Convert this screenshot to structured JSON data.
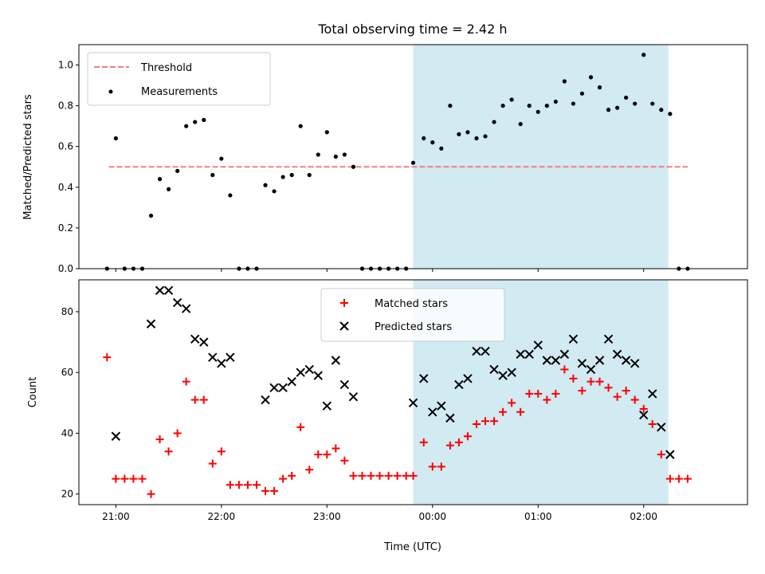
{
  "title": "Total observing time = 2.42 h",
  "xlabel": "Time (UTC)",
  "colors": {
    "shade": "#add8e6",
    "threshold": "#f08080",
    "measurement": "#000000",
    "matched": "#ff0000",
    "predicted": "#000000"
  },
  "chart_data": [
    {
      "type": "scatter",
      "ylabel": "Matched/Predicted stars",
      "ylim": [
        0,
        1.1
      ],
      "yticks": [
        "0.0",
        "0.2",
        "0.4",
        "0.6",
        "0.8",
        "1.0"
      ],
      "x_range": [
        "20:39",
        "02:59"
      ],
      "x_ticks": [
        "21:00",
        "22:00",
        "23:00",
        "00:00",
        "01:00",
        "02:00"
      ],
      "shaded_span": [
        "23:49",
        "02:14"
      ],
      "legend": {
        "position": "upper left",
        "threshold": "Threshold",
        "measurements": "Measurements"
      },
      "threshold": {
        "y": 0.5,
        "x_start": "20:56",
        "x_end": "02:25"
      },
      "series": [
        {
          "name": "Measurements",
          "points": [
            [
              "20:55",
              0.0
            ],
            [
              "21:00",
              0.64
            ],
            [
              "21:05",
              0.0
            ],
            [
              "21:10",
              0.0
            ],
            [
              "21:15",
              0.0
            ],
            [
              "21:20",
              0.26
            ],
            [
              "21:25",
              0.44
            ],
            [
              "21:30",
              0.39
            ],
            [
              "21:35",
              0.48
            ],
            [
              "21:40",
              0.7
            ],
            [
              "21:45",
              0.72
            ],
            [
              "21:50",
              0.73
            ],
            [
              "21:55",
              0.46
            ],
            [
              "22:00",
              0.54
            ],
            [
              "22:05",
              0.36
            ],
            [
              "22:10",
              0.0
            ],
            [
              "22:15",
              0.0
            ],
            [
              "22:20",
              0.0
            ],
            [
              "22:25",
              0.41
            ],
            [
              "22:30",
              0.38
            ],
            [
              "22:35",
              0.45
            ],
            [
              "22:40",
              0.46
            ],
            [
              "22:45",
              0.7
            ],
            [
              "22:50",
              0.46
            ],
            [
              "22:55",
              0.56
            ],
            [
              "23:00",
              0.67
            ],
            [
              "23:05",
              0.55
            ],
            [
              "23:10",
              0.56
            ],
            [
              "23:15",
              0.5
            ],
            [
              "23:20",
              0.0
            ],
            [
              "23:25",
              0.0
            ],
            [
              "23:30",
              0.0
            ],
            [
              "23:35",
              0.0
            ],
            [
              "23:40",
              0.0
            ],
            [
              "23:45",
              0.0
            ],
            [
              "23:49",
              0.52
            ],
            [
              "23:55",
              0.64
            ],
            [
              "00:00",
              0.62
            ],
            [
              "00:05",
              0.59
            ],
            [
              "00:10",
              0.8
            ],
            [
              "00:15",
              0.66
            ],
            [
              "00:20",
              0.67
            ],
            [
              "00:25",
              0.64
            ],
            [
              "00:30",
              0.65
            ],
            [
              "00:35",
              0.72
            ],
            [
              "00:40",
              0.8
            ],
            [
              "00:45",
              0.83
            ],
            [
              "00:50",
              0.71
            ],
            [
              "00:55",
              0.8
            ],
            [
              "01:00",
              0.77
            ],
            [
              "01:05",
              0.8
            ],
            [
              "01:10",
              0.82
            ],
            [
              "01:15",
              0.92
            ],
            [
              "01:20",
              0.81
            ],
            [
              "01:25",
              0.86
            ],
            [
              "01:30",
              0.94
            ],
            [
              "01:35",
              0.89
            ],
            [
              "01:40",
              0.78
            ],
            [
              "01:45",
              0.79
            ],
            [
              "01:50",
              0.84
            ],
            [
              "01:55",
              0.81
            ],
            [
              "02:00",
              1.05
            ],
            [
              "02:05",
              0.81
            ],
            [
              "02:10",
              0.78
            ],
            [
              "02:15",
              0.76
            ],
            [
              "02:20",
              0.0
            ],
            [
              "02:25",
              0.0
            ]
          ]
        }
      ]
    },
    {
      "type": "scatter",
      "ylabel": "Count",
      "ylim": [
        16.5,
        90.5
      ],
      "yticks": [
        "20",
        "40",
        "60",
        "80"
      ],
      "x_range": [
        "20:39",
        "02:59"
      ],
      "x_ticks": [
        "21:00",
        "22:00",
        "23:00",
        "00:00",
        "01:00",
        "02:00"
      ],
      "shaded_span": [
        "23:49",
        "02:14"
      ],
      "legend": {
        "position": "upper center",
        "matched": "Matched stars",
        "predicted": "Predicted stars"
      },
      "series": [
        {
          "name": "Matched stars",
          "points": [
            [
              "20:55",
              65
            ],
            [
              "21:00",
              25
            ],
            [
              "21:05",
              25
            ],
            [
              "21:10",
              25
            ],
            [
              "21:15",
              25
            ],
            [
              "21:20",
              20
            ],
            [
              "21:25",
              38
            ],
            [
              "21:30",
              34
            ],
            [
              "21:35",
              40
            ],
            [
              "21:40",
              57
            ],
            [
              "21:45",
              51
            ],
            [
              "21:50",
              51
            ],
            [
              "21:55",
              30
            ],
            [
              "22:00",
              34
            ],
            [
              "22:05",
              23
            ],
            [
              "22:10",
              23
            ],
            [
              "22:15",
              23
            ],
            [
              "22:20",
              23
            ],
            [
              "22:25",
              21
            ],
            [
              "22:30",
              21
            ],
            [
              "22:35",
              25
            ],
            [
              "22:40",
              26
            ],
            [
              "22:45",
              42
            ],
            [
              "22:50",
              28
            ],
            [
              "22:55",
              33
            ],
            [
              "23:00",
              33
            ],
            [
              "23:05",
              35
            ],
            [
              "23:10",
              31
            ],
            [
              "23:15",
              26
            ],
            [
              "23:20",
              26
            ],
            [
              "23:25",
              26
            ],
            [
              "23:30",
              26
            ],
            [
              "23:35",
              26
            ],
            [
              "23:40",
              26
            ],
            [
              "23:45",
              26
            ],
            [
              "23:49",
              26
            ],
            [
              "23:55",
              37
            ],
            [
              "00:00",
              29
            ],
            [
              "00:05",
              29
            ],
            [
              "00:10",
              36
            ],
            [
              "00:15",
              37
            ],
            [
              "00:20",
              39
            ],
            [
              "00:25",
              43
            ],
            [
              "00:30",
              44
            ],
            [
              "00:35",
              44
            ],
            [
              "00:40",
              47
            ],
            [
              "00:45",
              50
            ],
            [
              "00:50",
              47
            ],
            [
              "00:55",
              53
            ],
            [
              "01:00",
              53
            ],
            [
              "01:05",
              51
            ],
            [
              "01:10",
              53
            ],
            [
              "01:15",
              61
            ],
            [
              "01:20",
              58
            ],
            [
              "01:25",
              54
            ],
            [
              "01:30",
              57
            ],
            [
              "01:35",
              57
            ],
            [
              "01:40",
              55
            ],
            [
              "01:45",
              52
            ],
            [
              "01:50",
              54
            ],
            [
              "01:55",
              51
            ],
            [
              "02:00",
              48
            ],
            [
              "02:05",
              43
            ],
            [
              "02:10",
              33
            ],
            [
              "02:15",
              25
            ],
            [
              "02:20",
              25
            ],
            [
              "02:25",
              25
            ]
          ]
        },
        {
          "name": "Predicted stars",
          "points": [
            [
              "21:00",
              39
            ],
            [
              "21:20",
              76
            ],
            [
              "21:25",
              87
            ],
            [
              "21:30",
              87
            ],
            [
              "21:35",
              83
            ],
            [
              "21:40",
              81
            ],
            [
              "21:45",
              71
            ],
            [
              "21:50",
              70
            ],
            [
              "21:55",
              65
            ],
            [
              "22:00",
              63
            ],
            [
              "22:05",
              65
            ],
            [
              "22:25",
              51
            ],
            [
              "22:30",
              55
            ],
            [
              "22:35",
              55
            ],
            [
              "22:40",
              57
            ],
            [
              "22:45",
              60
            ],
            [
              "22:50",
              61
            ],
            [
              "22:55",
              59
            ],
            [
              "23:00",
              49
            ],
            [
              "23:05",
              64
            ],
            [
              "23:10",
              56
            ],
            [
              "23:15",
              52
            ],
            [
              "23:49",
              50
            ],
            [
              "23:55",
              58
            ],
            [
              "00:00",
              47
            ],
            [
              "00:05",
              49
            ],
            [
              "00:10",
              45
            ],
            [
              "00:15",
              56
            ],
            [
              "00:20",
              58
            ],
            [
              "00:25",
              67
            ],
            [
              "00:30",
              67
            ],
            [
              "00:35",
              61
            ],
            [
              "00:40",
              59
            ],
            [
              "00:45",
              60
            ],
            [
              "00:50",
              66
            ],
            [
              "00:55",
              66
            ],
            [
              "01:00",
              69
            ],
            [
              "01:05",
              64
            ],
            [
              "01:10",
              64
            ],
            [
              "01:15",
              66
            ],
            [
              "01:20",
              71
            ],
            [
              "01:25",
              63
            ],
            [
              "01:30",
              61
            ],
            [
              "01:35",
              64
            ],
            [
              "01:40",
              71
            ],
            [
              "01:45",
              66
            ],
            [
              "01:50",
              64
            ],
            [
              "01:55",
              63
            ],
            [
              "02:00",
              46
            ],
            [
              "02:05",
              53
            ],
            [
              "02:10",
              42
            ],
            [
              "02:15",
              33
            ]
          ]
        }
      ]
    }
  ]
}
